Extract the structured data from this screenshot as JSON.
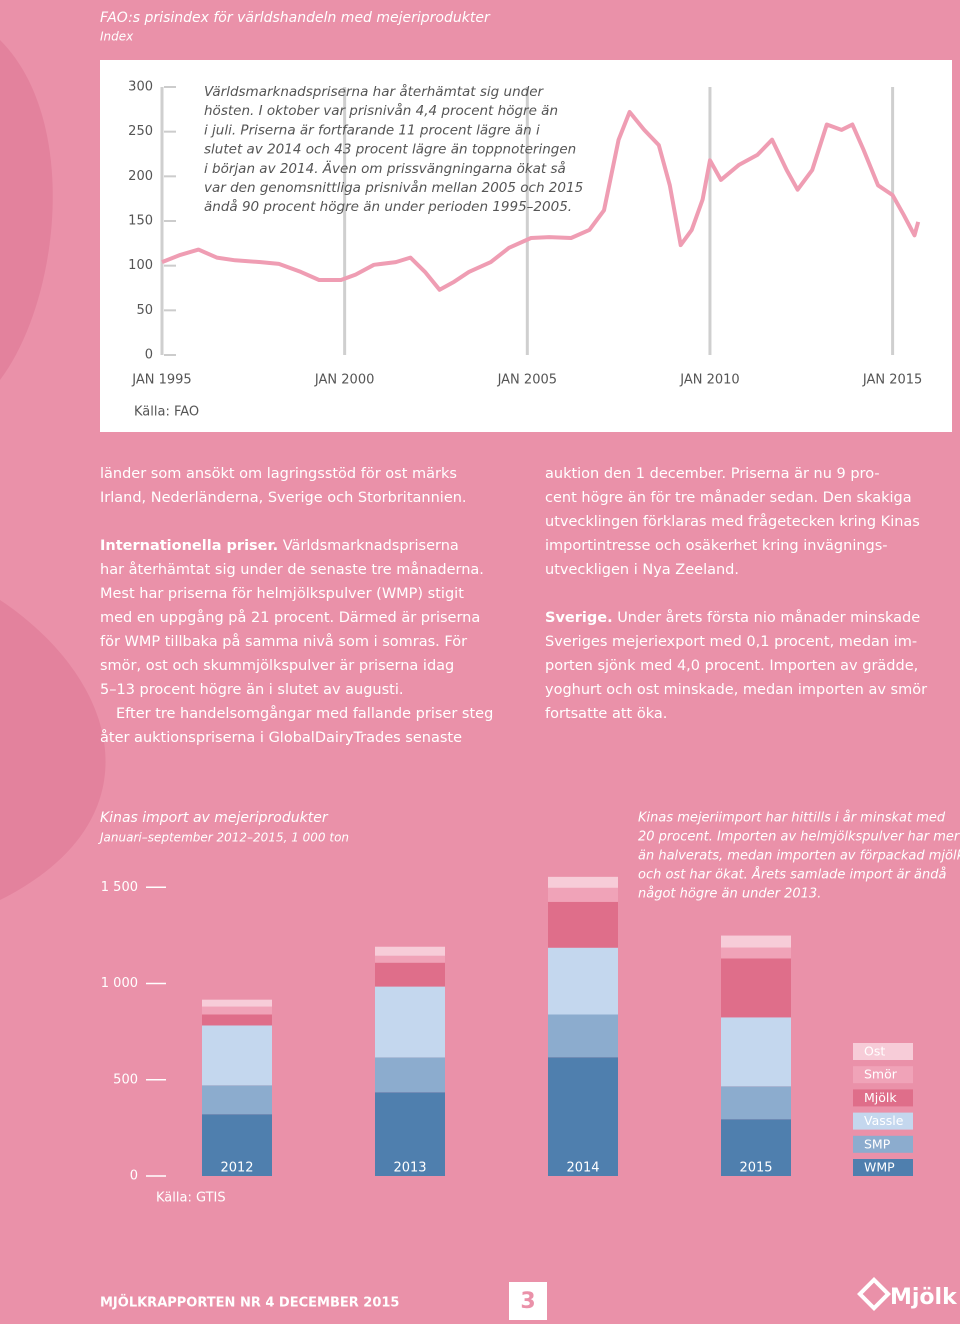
{
  "chart_data": [
    {
      "type": "line",
      "title": "FAO:s prisindex för världshandeln med mejeriprodukter",
      "subtitle": "Index",
      "annotation": [
        "Världsmarknadspriserna har återhämtat sig under",
        "hösten. I oktober var prisnivån 4,4 procent högre än",
        "i juli. Priserna är fortfarande 11 procent lägre än i",
        "slutet av 2014 och 43 procent lägre än toppnoteringen",
        "i början av 2014. Även om prissvängningarna ökat så",
        "var den genomsnittliga prisnivån mellan 2005 och 2015",
        "ändå 90 procent högre än under perioden 1995–2005."
      ],
      "source": "Källa: FAO",
      "color": "#ef9db3",
      "x": [
        1995.0,
        1995.5,
        1996.0,
        1996.5,
        1997.0,
        1997.7,
        1998.2,
        1998.8,
        1999.3,
        1999.9,
        2000.3,
        2000.8,
        2001.4,
        2001.8,
        2002.2,
        2002.6,
        2003.0,
        2003.4,
        2004.0,
        2004.5,
        2005.1,
        2005.6,
        2006.2,
        2006.7,
        2007.1,
        2007.5,
        2007.8,
        2008.2,
        2008.6,
        2008.9,
        2009.2,
        2009.5,
        2009.8,
        2010.0,
        2010.3,
        2010.8,
        2011.3,
        2011.7,
        2012.1,
        2012.4,
        2012.8,
        2013.2,
        2013.6,
        2013.9,
        2014.2,
        2014.6,
        2015.0,
        2015.3,
        2015.6,
        2015.7
      ],
      "values": [
        104,
        112,
        118,
        109,
        106,
        104,
        102,
        93,
        84,
        84,
        90,
        101,
        104,
        109,
        93,
        73,
        82,
        93,
        104,
        120,
        131,
        132,
        131,
        140,
        162,
        241,
        272,
        252,
        235,
        190,
        123,
        140,
        174,
        218,
        196,
        213,
        224,
        241,
        207,
        185,
        207,
        258,
        252,
        258,
        230,
        190,
        179,
        157,
        134,
        149
      ],
      "xlim": [
        1995,
        2015.75
      ],
      "xticks": [
        {
          "value": 1995,
          "label": "JAN 1995"
        },
        {
          "value": 2000,
          "label": "JAN 2000"
        },
        {
          "value": 2005,
          "label": "JAN 2005"
        },
        {
          "value": 2010,
          "label": "JAN 2010"
        },
        {
          "value": 2015,
          "label": "JAN 2015"
        }
      ],
      "ylim": [
        0,
        300
      ],
      "yticks": [
        0,
        50,
        100,
        150,
        200,
        250,
        300
      ],
      "grid": true
    },
    {
      "type": "stacked_bar",
      "title": "Kinas import av mejeriprodukter",
      "subtitle": "Januari–september 2012–2015, 1 000 ton",
      "annotation": [
        "Kinas mejeriimport har hittills i år minskat med",
        "20 procent. Importen av helmjölkspulver har mer",
        "än halverats, medan importen av förpackad mjölk",
        "och ost har ökat. Årets samlade import är ändå",
        "något högre än under 2013."
      ],
      "source": "Källa: GTIS",
      "categories": [
        "2012",
        "2013",
        "2014",
        "2015"
      ],
      "series": [
        {
          "name": "WMP",
          "color": "#4f7fae",
          "values": [
            321,
            435,
            617,
            295
          ]
        },
        {
          "name": "SMP",
          "color": "#8cacce",
          "values": [
            150,
            181,
            222,
            171
          ]
        },
        {
          "name": "Vassle",
          "color": "#c4d7ee",
          "values": [
            311,
            368,
            347,
            358
          ]
        },
        {
          "name": "Mjölk",
          "color": "#df6e8a",
          "values": [
            57,
            124,
            238,
            306
          ]
        },
        {
          "name": "Smör",
          "color": "#f0a3b8",
          "values": [
            41,
            36,
            73,
            57
          ]
        },
        {
          "name": "Ost",
          "color": "#f7ccd8",
          "values": [
            36,
            47,
            57,
            62
          ]
        }
      ],
      "ylim": [
        0,
        1600
      ],
      "yticks": [
        0,
        500,
        {
          "value": 1000,
          "label": "1 000"
        },
        {
          "value": 1500,
          "label": "1 500"
        }
      ]
    }
  ],
  "body": {
    "left": [
      {
        "lines": [
          "länder som ansökt om lagringsstöd för ost märks",
          "Irland, Nederländerna, Sverige och Storbritannien."
        ]
      },
      {
        "bold": "Internationella priser.",
        "lines": [
          "Världsmarknadspriserna",
          "har återhämtat sig under de senaste tre månaderna.",
          "Mest har priserna för helmjölkspulver (WMP) stigit",
          "med en uppgång på 21 procent. Därmed är priserna",
          "för WMP tillbaka på samma nivå som i somras. För",
          "smör, ost och skummjölkspulver är priserna idag",
          "5–13 procent högre än i slutet av augusti.",
          "Efter tre handelsomgångar med fallande priser steg",
          "åter auktionspriserna i GlobalDairyTrades senaste"
        ]
      }
    ],
    "right": [
      {
        "lines": [
          "auktion den 1 december. Priserna är nu 9 pro-",
          "cent högre än för tre månader sedan. Den skakiga",
          "utvecklingen förklaras med frågetecken kring Kinas",
          "importintresse och osäkerhet kring invägnings-",
          "utveckligen i Nya Zeeland."
        ]
      },
      {
        "bold": "Sverige.",
        "lines": [
          "Under årets första nio månader minskade",
          "Sveriges mejeriexport med 0,1 procent, medan im-",
          "porten sjönk med 4,0 procent. Importen av grädde,",
          "yoghurt och ost minskade, medan importen av smör",
          "fortsatte att öka."
        ]
      }
    ]
  },
  "footer": {
    "title": "MJÖLKRAPPORTEN NR 4 DECEMBER 2015",
    "page": "3",
    "logo": "Mjölk"
  }
}
